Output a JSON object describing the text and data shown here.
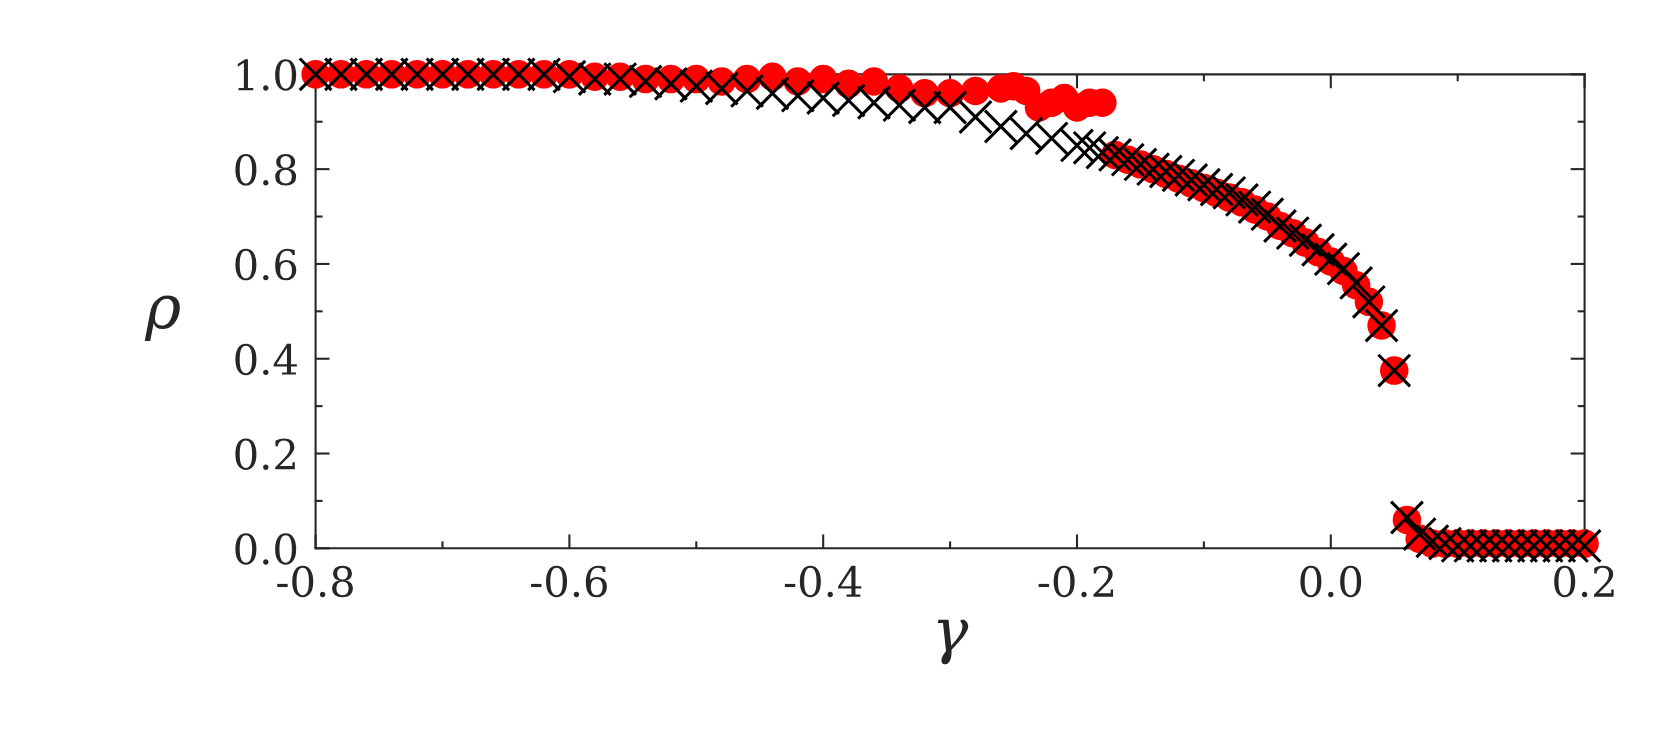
{
  "chart_data": {
    "type": "scatter",
    "xlabel": "γ",
    "ylabel": "ρ",
    "xlim": [
      -0.8,
      0.2
    ],
    "ylim": [
      0.0,
      1.0
    ],
    "xticks": [
      -0.8,
      -0.6,
      -0.4,
      -0.2,
      {
        "value": 0,
        "label": "0.0"
      },
      0.2
    ],
    "yticks": [
      {
        "value": 0,
        "label": "0.0"
      },
      0.2,
      0.4,
      0.6,
      0.8,
      {
        "value": 1,
        "label": "1.0"
      }
    ],
    "grid": false,
    "legend": false,
    "series": [
      {
        "color": "#ff0000",
        "marker": "circle",
        "x": [
          -0.8,
          -0.78,
          -0.76,
          -0.74,
          -0.72,
          -0.7,
          -0.68,
          -0.66,
          -0.64,
          -0.62,
          -0.6,
          -0.58,
          -0.56,
          -0.54,
          -0.52,
          -0.5,
          -0.48,
          -0.46,
          -0.44,
          -0.42,
          -0.4,
          -0.38,
          -0.36,
          -0.34,
          -0.32,
          -0.3,
          -0.28,
          -0.26,
          -0.25,
          -0.24,
          -0.23,
          -0.22,
          -0.21,
          -0.2,
          -0.19,
          -0.18,
          -0.17,
          -0.16,
          -0.15,
          -0.14,
          -0.13,
          -0.12,
          -0.11,
          -0.1,
          -0.09,
          -0.08,
          -0.07,
          -0.06,
          -0.05,
          -0.04,
          -0.03,
          -0.02,
          -0.01,
          0.0,
          0.01,
          0.02,
          0.03,
          0.04,
          0.05,
          0.06,
          0.07,
          0.08,
          0.09,
          0.1,
          0.11,
          0.12,
          0.13,
          0.14,
          0.15,
          0.16,
          0.17,
          0.18,
          0.19,
          0.2
        ],
        "values": [
          1.0,
          1.0,
          1.0,
          1.0,
          1.0,
          1.0,
          1.0,
          1.0,
          1.0,
          1.0,
          1.0,
          0.995,
          0.995,
          0.99,
          0.99,
          0.99,
          0.985,
          0.99,
          0.995,
          0.985,
          0.99,
          0.98,
          0.985,
          0.97,
          0.96,
          0.96,
          0.965,
          0.97,
          0.975,
          0.965,
          0.93,
          0.94,
          0.95,
          0.93,
          0.94,
          0.94,
          0.83,
          0.82,
          0.81,
          0.8,
          0.79,
          0.78,
          0.77,
          0.76,
          0.75,
          0.74,
          0.73,
          0.715,
          0.7,
          0.68,
          0.665,
          0.645,
          0.625,
          0.605,
          0.585,
          0.555,
          0.52,
          0.47,
          0.375,
          0.06,
          0.02,
          0.01,
          0.01,
          0.01,
          0.01,
          0.01,
          0.01,
          0.01,
          0.01,
          0.01,
          0.01,
          0.01,
          0.01,
          0.01
        ]
      },
      {
        "color": "#000000",
        "marker": "cross",
        "x": [
          -0.8,
          -0.78,
          -0.76,
          -0.74,
          -0.72,
          -0.7,
          -0.68,
          -0.66,
          -0.64,
          -0.62,
          -0.6,
          -0.58,
          -0.56,
          -0.54,
          -0.52,
          -0.5,
          -0.48,
          -0.46,
          -0.44,
          -0.42,
          -0.4,
          -0.38,
          -0.36,
          -0.34,
          -0.32,
          -0.3,
          -0.28,
          -0.26,
          -0.24,
          -0.22,
          -0.2,
          -0.19,
          -0.18,
          -0.17,
          -0.16,
          -0.15,
          -0.14,
          -0.13,
          -0.12,
          -0.11,
          -0.1,
          -0.09,
          -0.08,
          -0.07,
          -0.06,
          -0.05,
          -0.04,
          -0.03,
          -0.02,
          -0.01,
          0.0,
          0.01,
          0.02,
          0.03,
          0.04,
          0.05,
          0.06,
          0.07,
          0.08,
          0.09,
          0.1,
          0.11,
          0.12,
          0.13,
          0.14,
          0.15,
          0.16,
          0.17,
          0.18,
          0.19,
          0.2
        ],
        "values": [
          1.0,
          1.0,
          1.0,
          1.0,
          1.0,
          1.0,
          1.0,
          1.0,
          1.0,
          1.0,
          0.995,
          0.99,
          0.99,
          0.985,
          0.98,
          0.975,
          0.97,
          0.965,
          0.96,
          0.955,
          0.95,
          0.945,
          0.94,
          0.935,
          0.93,
          0.93,
          0.91,
          0.89,
          0.875,
          0.865,
          0.85,
          0.845,
          0.835,
          0.83,
          0.82,
          0.81,
          0.8,
          0.795,
          0.787,
          0.777,
          0.767,
          0.757,
          0.75,
          0.735,
          0.72,
          0.705,
          0.68,
          0.665,
          0.65,
          0.63,
          0.61,
          0.59,
          0.56,
          0.52,
          0.47,
          0.375,
          0.065,
          0.03,
          0.015,
          0.01,
          0.005,
          0.005,
          0.005,
          0.005,
          0.005,
          0.005,
          0.005,
          0.005,
          0.005,
          0.005,
          0.005
        ]
      }
    ]
  }
}
